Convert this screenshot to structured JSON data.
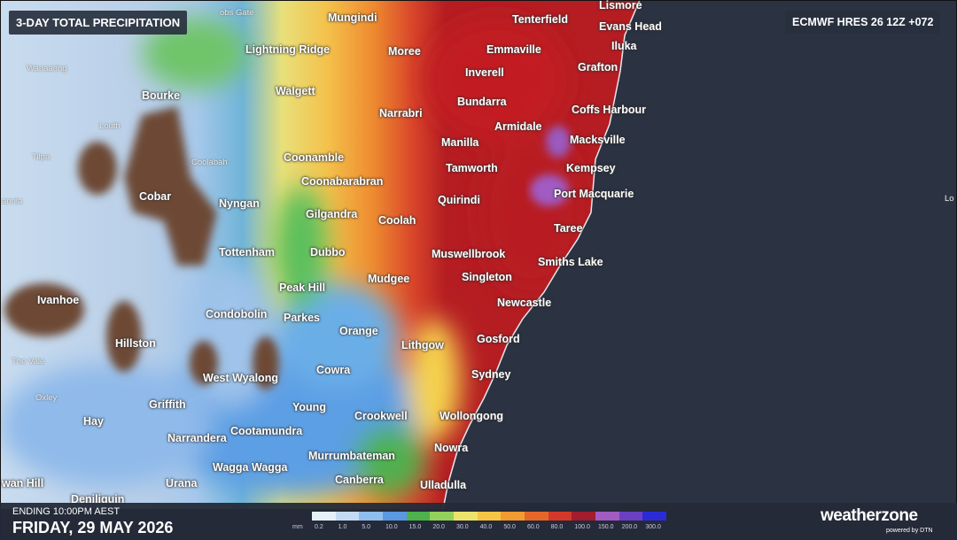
{
  "header": {
    "title": "3-DAY TOTAL PRECIPITATION",
    "model": "ECMWF HRES 26 12Z +072"
  },
  "places": [
    "obs Gate",
    "Mungindi",
    "Tenterfield",
    "Lismore",
    "Evans Head",
    "Lightning Ridge",
    "Moree",
    "Emmaville",
    "Iluka",
    "Wanaaring",
    "Grafton",
    "Inverell",
    "Bourke",
    "Walgett",
    "Bundarra",
    "Coffs Harbour",
    "Louth",
    "Narrabri",
    "Armidale",
    "Manilla",
    "Macksville",
    "Tilpa",
    "Coonamble",
    "Coolabah",
    "Tamworth",
    "Kempsey",
    "Coonabarabran",
    "Cobar",
    "Port Macquarie",
    "annia",
    "Nyngan",
    "Quirindi",
    "Lo",
    "Gilgandra",
    "Coolah",
    "Taree",
    "Tottenham",
    "Dubbo",
    "Muswellbrook",
    "Smiths Lake",
    "Mudgee",
    "Singleton",
    "Peak Hill",
    "Ivanhoe",
    "Newcastle",
    "Condobolin",
    "Parkes",
    "Orange",
    "Gosford",
    "Hillston",
    "Lithgow",
    "The Vale",
    "Cowra",
    "West Wyalong",
    "Sydney",
    "Oxley",
    "Griffith",
    "Young",
    "Crookwell",
    "Wollongong",
    "Hay",
    "Cootamundra",
    "Narrandera",
    "Nowra",
    "Murrumbateman",
    "Wagga Wagga",
    "Canberra",
    "wan Hill",
    "Urana",
    "Ulladulla",
    "Deniliquin"
  ],
  "footer": {
    "ending": "ENDING 10:00PM AEST",
    "date": "FRIDAY, 29 MAY 2026",
    "brand": "weatherzone",
    "powered": "powered by DTN"
  },
  "legend": {
    "unit": "mm",
    "items": [
      {
        "label": "0.2",
        "color": "#e6f0fb"
      },
      {
        "label": "1.0",
        "color": "#c3dcf4"
      },
      {
        "label": "5.0",
        "color": "#8fbdee"
      },
      {
        "label": "10.0",
        "color": "#5a98e2"
      },
      {
        "label": "15.0",
        "color": "#4cb24c"
      },
      {
        "label": "20.0",
        "color": "#93d15c"
      },
      {
        "label": "30.0",
        "color": "#ebe36c"
      },
      {
        "label": "40.0",
        "color": "#f6c445"
      },
      {
        "label": "50.0",
        "color": "#f29b30"
      },
      {
        "label": "60.0",
        "color": "#e6662a"
      },
      {
        "label": "80.0",
        "color": "#d3382a"
      },
      {
        "label": "100.0",
        "color": "#a21d2d"
      },
      {
        "label": "150.0",
        "color": "#a15cc2"
      },
      {
        "label": "200.0",
        "color": "#6a40c2"
      },
      {
        "label": "300.0",
        "color": "#2b2bd6"
      }
    ]
  }
}
